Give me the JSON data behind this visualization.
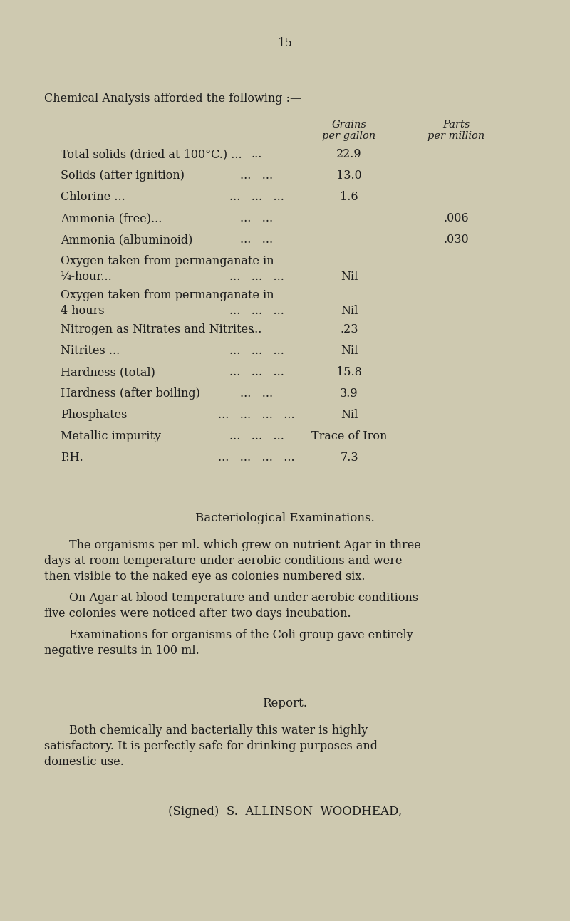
{
  "page_number": "15",
  "bg_color": "#cec9b0",
  "text_color": "#1c1c1c",
  "title_intro": "Chemical Analysis afforded the following :—",
  "col_header1": "Grains",
  "col_header1b": "per gallon",
  "col_header2": "Parts",
  "col_header2b": "per million",
  "rows": [
    {
      "label": "Total solids (dried at 100°C.) ...",
      "dots": "...",
      "grains": "22.9",
      "ppm": ""
    },
    {
      "label": "Solids (after ignition)",
      "dots": "...   ...",
      "grains": "13.0",
      "ppm": ""
    },
    {
      "label": "Chlorine ...",
      "dots": "...   ...   ...",
      "grains": "1.6",
      "ppm": ""
    },
    {
      "label": "Ammonia (free)...",
      "dots": "...   ...",
      "grains": "",
      "ppm": ".006"
    },
    {
      "label": "Ammonia (albuminoid)",
      "dots": "...   ...",
      "grains": "",
      "ppm": ".030"
    },
    {
      "label": "Oxygen taken from permanganate in",
      "dots": "",
      "grains": "",
      "ppm": "",
      "multiline": true,
      "label2": "    ¼-hour...",
      "dots2": "...   ...   ...",
      "grains2": "Nil",
      "ppm2": ""
    },
    {
      "label": "Oxygen taken from permanganate in",
      "dots": "",
      "grains": "",
      "ppm": "",
      "multiline": true,
      "label2": "    4 hours",
      "dots2": "...   ...   ...",
      "grains2": "Nil",
      "ppm2": ""
    },
    {
      "label": "Nitrogen as Nitrates and Nitrites",
      "dots": "...",
      "grains": ".23",
      "ppm": ""
    },
    {
      "label": "Nitrites ...",
      "dots": "...   ...   ...",
      "grains": "Nil",
      "ppm": ""
    },
    {
      "label": "Hardness (total)",
      "dots": "...   ...   ...",
      "grains": "15.8",
      "ppm": ""
    },
    {
      "label": "Hardness (after boiling)",
      "dots": "...   ...",
      "grains": "3.9",
      "ppm": ""
    },
    {
      "label": "Phosphates",
      "dots": "...   ...   ...   ...",
      "grains": "Nil",
      "ppm": ""
    },
    {
      "label": "Metallic impurity",
      "dots": "...   ...   ...",
      "grains": "Trace of Iron",
      "ppm": ""
    },
    {
      "label": "P.H.",
      "dots": "...   ...   ...   ...",
      "grains": "7.3",
      "ppm": ""
    }
  ],
  "bact_heading": "Bacteriological Examinations.",
  "bact_p1": "The organisms per ml. which grew on nutrient Agar in three days at room temperature under aerobic conditions and were then visible to the naked eye as colonies numbered six.",
  "bact_p2": "On Agar at blood temperature and under aerobic conditions five colonies were noticed after two days incubation.",
  "bact_p3": "Examinations for organisms of the Coli group gave entirely negative results in 100 ml.",
  "report_heading": "Report.",
  "report_p1": "Both chemically and bacterially this water is highly satisfactory. It is perfectly safe for drinking purposes and domestic use.",
  "signed": "(Signed)  S.  ALLINSON  WOODHEAD,"
}
